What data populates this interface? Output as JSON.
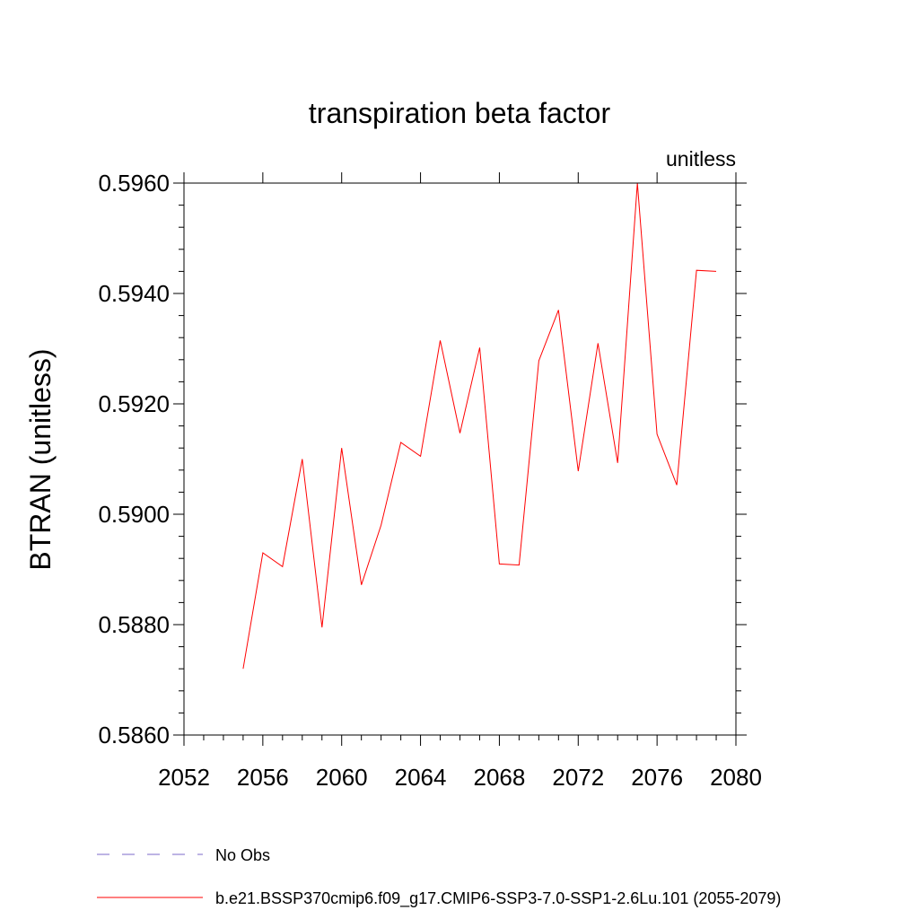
{
  "chart_data": {
    "type": "line",
    "title": "transpiration beta factor",
    "units_label": "unitless",
    "xlabel": "",
    "ylabel": "BTRAN  (unitless)",
    "xlim": [
      2052,
      2080
    ],
    "ylim": [
      0.586,
      0.596
    ],
    "x_ticks": [
      2052,
      2056,
      2060,
      2064,
      2068,
      2072,
      2076,
      2080
    ],
    "x_tick_labels": [
      "2052",
      "2056",
      "2060",
      "2064",
      "2068",
      "2072",
      "2076",
      "2080"
    ],
    "y_ticks": [
      0.586,
      0.588,
      0.59,
      0.592,
      0.594,
      0.596
    ],
    "y_tick_labels": [
      "0.5860",
      "0.5880",
      "0.5900",
      "0.5920",
      "0.5940",
      "0.5960"
    ],
    "grid": false,
    "legend_position": "bottom",
    "series": [
      {
        "name": "b.e21.BSSP370cmip6.f09_g17.CMIP6-SSP3-7.0-SSP1-2.6Lu.101 (2055-2079)",
        "color": "#ff0000",
        "dash": "solid",
        "x": [
          2055,
          2056,
          2057,
          2058,
          2059,
          2060,
          2061,
          2062,
          2063,
          2064,
          2065,
          2066,
          2067,
          2068,
          2069,
          2070,
          2071,
          2072,
          2073,
          2074,
          2075,
          2076,
          2077,
          2078,
          2079
        ],
        "y": [
          0.5872,
          0.5893,
          0.58905,
          0.591,
          0.58795,
          0.5912,
          0.58872,
          0.5898,
          0.5913,
          0.59105,
          0.59315,
          0.59147,
          0.59302,
          0.5891,
          0.58908,
          0.59278,
          0.5937,
          0.59078,
          0.5931,
          0.59093,
          0.596,
          0.59145,
          0.59053,
          0.59442,
          0.5944
        ]
      }
    ],
    "legend": [
      {
        "label": "No Obs",
        "color": "#7b68c8",
        "dash": "dashed"
      },
      {
        "label": "b.e21.BSSP370cmip6.f09_g17.CMIP6-SSP3-7.0-SSP1-2.6Lu.101 (2055-2079)",
        "color": "#ff0000",
        "dash": "solid"
      }
    ]
  }
}
